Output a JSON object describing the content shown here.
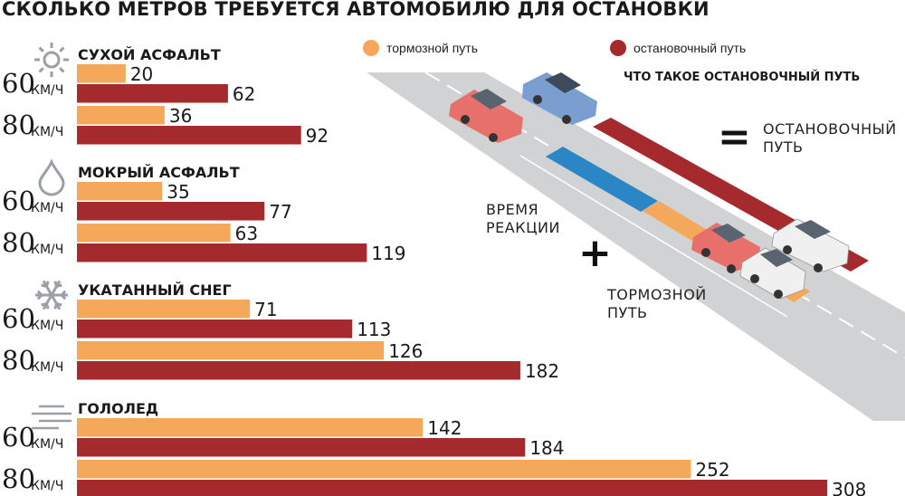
{
  "title": "СКОЛЬКО МЕТРОВ ТРЕБУЕТСЯ АВТОМОБИЛЮ ДЛЯ ОСТАНОВКИ",
  "legend": {
    "braking": "тормозной путь",
    "stopping": "остановочный путь"
  },
  "colors": {
    "braking": "#f5a85a",
    "stopping": "#a52a2d",
    "reaction": "#2b86c6",
    "road": "#d0d2d4",
    "icon": "#9aa0a6"
  },
  "diagram": {
    "title": "ЧТО ТАКОЕ ОСТАНОВОЧНЫЙ ПУТЬ",
    "stopping_line1": "ОСТАНОВОЧНЫЙ",
    "stopping_line2": "ПУТЬ",
    "reaction_line1": "ВРЕМЯ",
    "reaction_line2": "РЕАКЦИИ",
    "braking_line1": "ТОРМОЗНОЙ",
    "braking_line2": "ПУТЬ",
    "equals": "=",
    "plus": "+"
  },
  "chart_data": {
    "type": "bar",
    "title": "СКОЛЬКО МЕТРОВ ТРЕБУЕТСЯ АВТОМОБИЛЮ ДЛЯ ОСТАНОВКИ",
    "unit": "КМ/Ч",
    "series": [
      {
        "name": "тормозной путь",
        "color": "#f5a85a"
      },
      {
        "name": "остановочный путь",
        "color": "#a52a2d"
      }
    ],
    "groups": [
      {
        "condition": "СУХОЙ АСФАЛЬТ",
        "icon": "sun-icon",
        "rows": [
          {
            "speed": "60",
            "braking": 20,
            "stopping": 62
          },
          {
            "speed": "80",
            "braking": 36,
            "stopping": 92
          }
        ]
      },
      {
        "condition": "МОКРЫЙ АСФАЛЬТ",
        "icon": "raindrop-icon",
        "rows": [
          {
            "speed": "60",
            "braking": 35,
            "stopping": 77
          },
          {
            "speed": "80",
            "braking": 63,
            "stopping": 119
          }
        ]
      },
      {
        "condition": "УКАТАННЫЙ СНЕГ",
        "icon": "snowflake-icon",
        "rows": [
          {
            "speed": "60",
            "braking": 71,
            "stopping": 113
          },
          {
            "speed": "80",
            "braking": 126,
            "stopping": 182
          }
        ]
      },
      {
        "condition": "ГОЛОЛЕД",
        "icon": "ice-icon",
        "rows": [
          {
            "speed": "60",
            "braking": 142,
            "stopping": 184
          },
          {
            "speed": "80",
            "braking": 252,
            "stopping": 308
          }
        ]
      }
    ]
  }
}
